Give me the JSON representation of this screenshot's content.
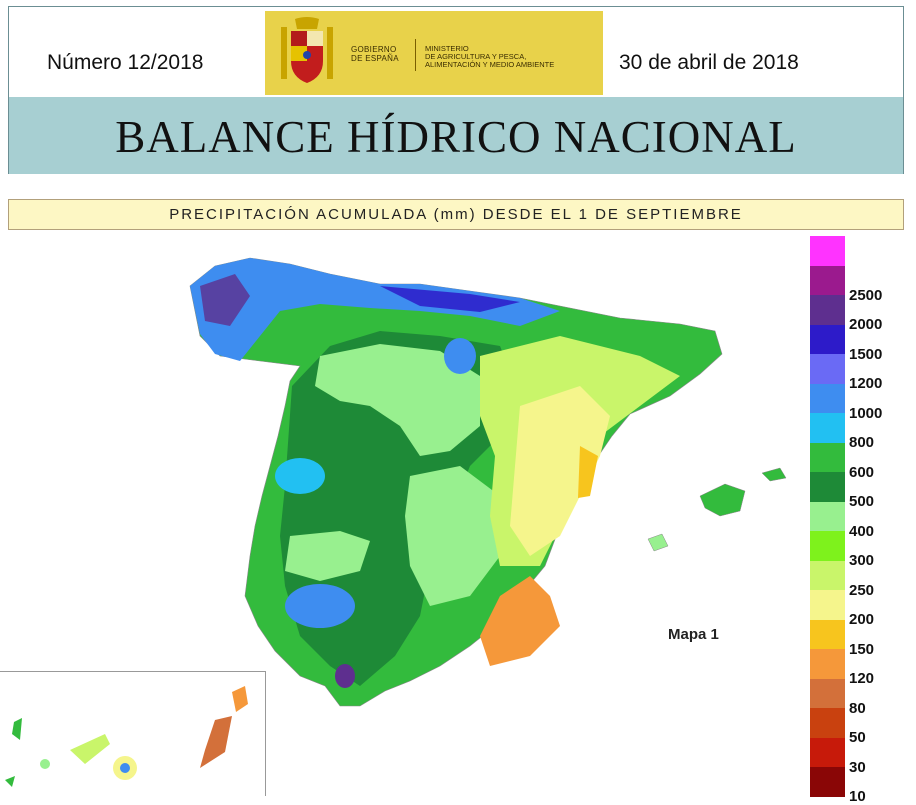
{
  "header": {
    "number": "Número 12/2018",
    "date": "30 de abril de 2018",
    "logo_gobierno": "GOBIERNO\nDE ESPAÑA",
    "logo_ministerio": "MINISTERIO\nDE AGRICULTURA Y PESCA,\nALIMENTACIÓN Y MEDIO AMBIENTE",
    "title": "BALANCE HÍDRICO NACIONAL"
  },
  "map": {
    "title": "PRECIPITACIÓN ACUMULADA (mm) DESDE EL 1 DE SEPTIEMBRE",
    "label": "Mapa 1"
  },
  "legend": {
    "items": [
      {
        "label": "",
        "color": "#ff33ff"
      },
      {
        "label": "2500",
        "color": "#9b1a8e"
      },
      {
        "label": "2000",
        "color": "#5e2f8f"
      },
      {
        "label": "1500",
        "color": "#2d1bc9"
      },
      {
        "label": "1200",
        "color": "#6a6af5"
      },
      {
        "label": "1000",
        "color": "#3e8df0"
      },
      {
        "label": "800",
        "color": "#22c0f2"
      },
      {
        "label": "600",
        "color": "#33bb3d"
      },
      {
        "label": "500",
        "color": "#1e8a37"
      },
      {
        "label": "400",
        "color": "#98f08f"
      },
      {
        "label": "300",
        "color": "#7ef21c"
      },
      {
        "label": "250",
        "color": "#c9f56a"
      },
      {
        "label": "200",
        "color": "#f5f58c"
      },
      {
        "label": "150",
        "color": "#f7c51e"
      },
      {
        "label": "120",
        "color": "#f5983a"
      },
      {
        "label": "80",
        "color": "#d3703a"
      },
      {
        "label": "50",
        "color": "#c9410f"
      },
      {
        "label": "30",
        "color": "#c71a0a"
      },
      {
        "label": "10",
        "color": "#8a0606"
      }
    ]
  }
}
